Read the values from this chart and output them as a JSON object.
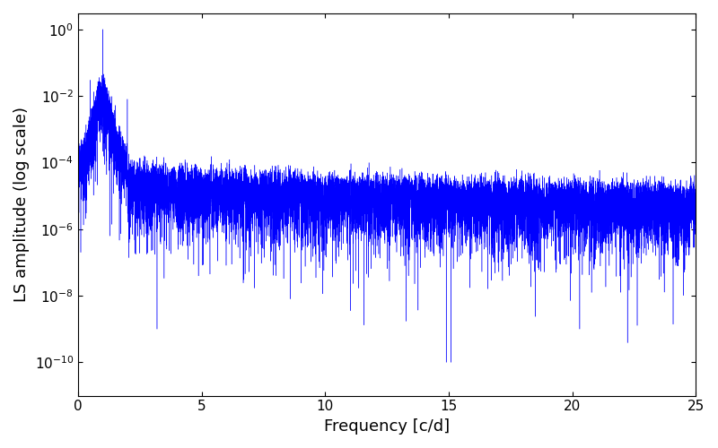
{
  "xlabel": "Frequency [c/d]",
  "ylabel": "LS amplitude (log scale)",
  "line_color": "#0000ff",
  "xlim": [
    0,
    25
  ],
  "ylim": [
    1e-11,
    3.0
  ],
  "yticks": [
    1e-10,
    1e-08,
    1e-06,
    0.0001,
    0.01,
    1.0
  ],
  "xticks": [
    0,
    5,
    10,
    15,
    20,
    25
  ],
  "figsize": [
    8.0,
    5.0
  ],
  "dpi": 100,
  "background_color": "#ffffff",
  "seed": 7,
  "n_points": 12000,
  "freq_max": 25.0,
  "linewidth": 0.3
}
